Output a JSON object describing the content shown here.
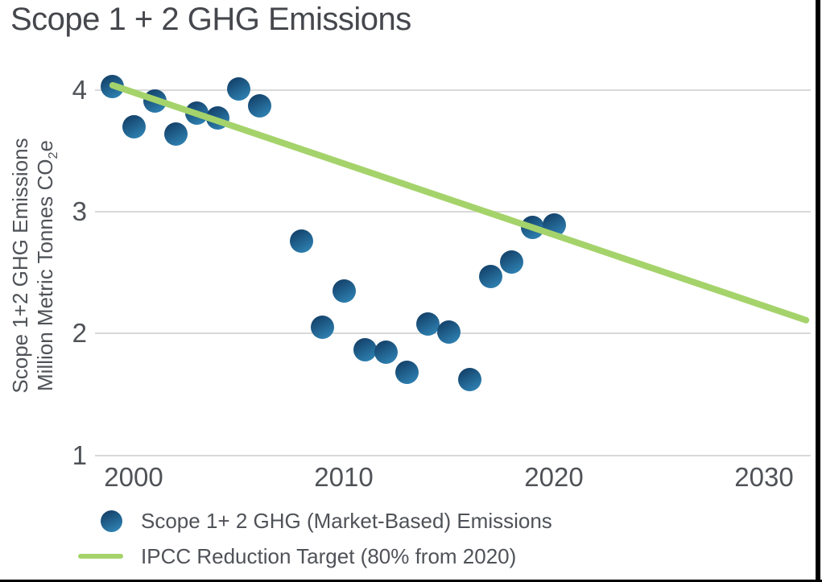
{
  "title": "Scope 1 + 2 GHG Emissions",
  "colors": {
    "title_text": "#45474d",
    "axis_text": "#4f5257",
    "gridline": "#d9d9d9",
    "point_gradient_dark": "#123e66",
    "point_gradient_light": "#2e81b2",
    "target_line": "#a5d36b",
    "frame_border": "#000000"
  },
  "chart_data": {
    "type": "scatter",
    "title": "Scope 1 + 2 GHG Emissions",
    "xlabel": "",
    "ylabel_line1": "Scope 1+2 GHG Emissions",
    "ylabel_line2": {
      "pre": "Million Metric Tonnes CO",
      "sub": "2",
      "post": "e"
    },
    "x_ticks": [
      2000,
      2010,
      2020,
      2030
    ],
    "y_ticks": [
      4,
      3,
      2,
      1
    ],
    "xlim": [
      1998,
      2033
    ],
    "ylim": [
      1,
      4.1
    ],
    "grid": "horizontal-only",
    "legend_position": "bottom-left",
    "series": [
      {
        "name": "Scope 1+ 2 GHG (Market-Based) Emissions",
        "type": "scatter",
        "points": [
          {
            "year": 1999,
            "value": 4.03
          },
          {
            "year": 2000,
            "value": 3.7
          },
          {
            "year": 2001,
            "value": 3.91
          },
          {
            "year": 2002,
            "value": 3.64
          },
          {
            "year": 2003,
            "value": 3.81
          },
          {
            "year": 2004,
            "value": 3.77
          },
          {
            "year": 2005,
            "value": 4.01
          },
          {
            "year": 2006,
            "value": 3.87
          },
          {
            "year": 2008,
            "value": 2.76
          },
          {
            "year": 2009,
            "value": 2.05
          },
          {
            "year": 2010,
            "value": 2.35
          },
          {
            "year": 2011,
            "value": 1.87
          },
          {
            "year": 2012,
            "value": 1.85
          },
          {
            "year": 2013,
            "value": 1.68
          },
          {
            "year": 2014,
            "value": 2.08
          },
          {
            "year": 2015,
            "value": 2.01
          },
          {
            "year": 2016,
            "value": 1.62
          },
          {
            "year": 2017,
            "value": 2.47
          },
          {
            "year": 2018,
            "value": 2.59
          },
          {
            "year": 2019,
            "value": 2.87
          },
          {
            "year": 2020,
            "value": 2.89
          }
        ]
      },
      {
        "name": "IPCC Reduction Target (80% from 2020)",
        "type": "line",
        "points": [
          {
            "year": 1999,
            "value": 4.04
          },
          {
            "year": 2032,
            "value": 2.11
          }
        ]
      }
    ]
  }
}
